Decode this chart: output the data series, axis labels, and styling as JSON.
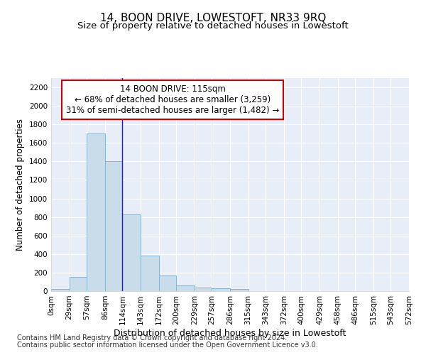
{
  "title": "14, BOON DRIVE, LOWESTOFT, NR33 9RQ",
  "subtitle": "Size of property relative to detached houses in Lowestoft",
  "xlabel": "Distribution of detached houses by size in Lowestoft",
  "ylabel": "Number of detached properties",
  "bin_edges": [
    0,
    29,
    57,
    86,
    114,
    143,
    172,
    200,
    229,
    257,
    286,
    315,
    343,
    372,
    400,
    429,
    458,
    486,
    515,
    543,
    572
  ],
  "bar_heights": [
    20,
    155,
    1700,
    1400,
    830,
    385,
    165,
    65,
    35,
    28,
    25,
    0,
    0,
    0,
    0,
    0,
    0,
    0,
    0,
    0
  ],
  "bar_color": "#c9dcea",
  "bar_edgecolor": "#8ab4cc",
  "property_line_x": 114,
  "property_line_color": "#2222aa",
  "annotation_text": "14 BOON DRIVE: 115sqm\n← 68% of detached houses are smaller (3,259)\n31% of semi-detached houses are larger (1,482) →",
  "annotation_box_color": "#ffffff",
  "annotation_box_edgecolor": "#cc0000",
  "ylim": [
    0,
    2300
  ],
  "yticks": [
    0,
    200,
    400,
    600,
    800,
    1000,
    1200,
    1400,
    1600,
    1800,
    2000,
    2200
  ],
  "tick_labels": [
    "0sqm",
    "29sqm",
    "57sqm",
    "86sqm",
    "114sqm",
    "143sqm",
    "172sqm",
    "200sqm",
    "229sqm",
    "257sqm",
    "286sqm",
    "315sqm",
    "343sqm",
    "372sqm",
    "400sqm",
    "429sqm",
    "458sqm",
    "486sqm",
    "515sqm",
    "543sqm",
    "572sqm"
  ],
  "background_color": "#e8eef8",
  "grid_color": "#ffffff",
  "footer_line1": "Contains HM Land Registry data © Crown copyright and database right 2024.",
  "footer_line2": "Contains public sector information licensed under the Open Government Licence v3.0.",
  "title_fontsize": 11,
  "subtitle_fontsize": 9.5,
  "xlabel_fontsize": 9,
  "ylabel_fontsize": 8.5,
  "tick_fontsize": 7.5,
  "footer_fontsize": 7,
  "annotation_fontsize": 8.5
}
